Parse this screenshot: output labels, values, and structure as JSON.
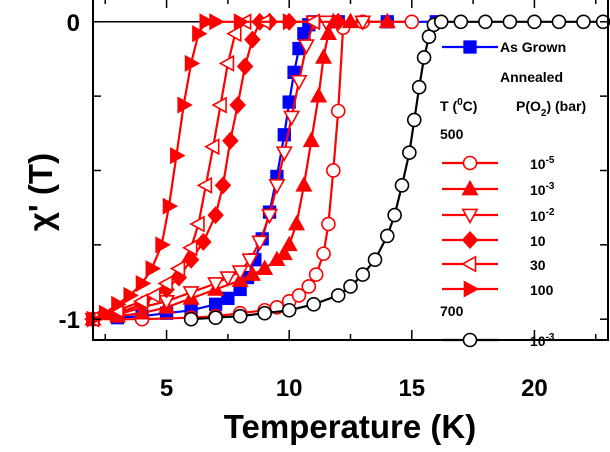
{
  "chart_data": {
    "type": "line",
    "title": "",
    "xlabel": "Temperature (K)",
    "ylabel": "χ' (T)",
    "xlim": [
      2,
      23
    ],
    "ylim": [
      -1.07,
      0.08
    ],
    "x_ticks": [
      5,
      10,
      15,
      20
    ],
    "y_ticks": [
      0,
      -1
    ],
    "grid": false,
    "legend_position": "right",
    "colors": {
      "red": "#ff0000",
      "blue": "#0000ff",
      "black": "#000000"
    },
    "legend_texts": {
      "annealed": "Annealed",
      "t_header": "T (",
      "t_header_sup": "0",
      "t_header_end": "C)",
      "p_header": "P(O",
      "p_header_sub": "2",
      "p_header_end": ") (bar)",
      "group_500": "500",
      "group_700": "700"
    },
    "series": [
      {
        "name": "As Grown",
        "color": "#0000ff",
        "marker": "square-filled",
        "x": [
          2.0,
          3.0,
          4.0,
          5.0,
          6.0,
          7.0,
          7.5,
          8.0,
          8.3,
          8.6,
          8.9,
          9.2,
          9.5,
          9.8,
          10.0,
          10.2,
          10.4,
          10.6,
          10.8,
          11.0,
          12.0,
          14.0,
          16.0
        ],
        "y": [
          -1.0,
          -0.995,
          -0.99,
          -0.98,
          -0.97,
          -0.95,
          -0.93,
          -0.9,
          -0.86,
          -0.8,
          -0.73,
          -0.64,
          -0.52,
          -0.38,
          -0.27,
          -0.17,
          -0.09,
          -0.04,
          -0.01,
          0.0,
          0.0,
          0.0,
          0.0
        ]
      },
      {
        "name": "500 °C, 10⁻⁵ bar",
        "color": "#ff0000",
        "marker": "circle-open",
        "x": [
          2.0,
          4.0,
          6.0,
          7.0,
          8.0,
          9.0,
          9.5,
          10.0,
          10.4,
          10.8,
          11.1,
          11.4,
          11.6,
          11.8,
          12.0,
          12.2,
          13.0,
          15.0
        ],
        "y": [
          -1.0,
          -1.0,
          -0.995,
          -0.99,
          -0.98,
          -0.97,
          -0.96,
          -0.94,
          -0.92,
          -0.89,
          -0.85,
          -0.78,
          -0.68,
          -0.5,
          -0.3,
          -0.02,
          0.0,
          0.0
        ]
      },
      {
        "name": "500 °C, 10⁻³ bar",
        "color": "#ff0000",
        "marker": "triangle-up-filled",
        "x": [
          2.0,
          3.0,
          4.0,
          5.0,
          6.0,
          7.0,
          8.0,
          8.5,
          9.0,
          9.5,
          9.8,
          10.0,
          10.3,
          10.6,
          10.9,
          11.2,
          11.4,
          11.6,
          11.8,
          12.5,
          14.0
        ],
        "y": [
          -1.0,
          -0.99,
          -0.98,
          -0.96,
          -0.93,
          -0.9,
          -0.87,
          -0.85,
          -0.83,
          -0.8,
          -0.78,
          -0.75,
          -0.68,
          -0.55,
          -0.4,
          -0.25,
          -0.12,
          -0.04,
          0.0,
          0.0,
          0.0
        ]
      },
      {
        "name": "500 °C, 10⁻² bar",
        "color": "#ff0000",
        "marker": "triangle-down-open",
        "x": [
          2.0,
          3.0,
          4.0,
          5.0,
          6.0,
          7.0,
          7.5,
          8.0,
          8.4,
          8.8,
          9.2,
          9.5,
          9.8,
          10.1,
          10.4,
          10.7,
          11.0,
          11.5,
          13.0
        ],
        "y": [
          -1.0,
          -0.985,
          -0.96,
          -0.94,
          -0.91,
          -0.88,
          -0.86,
          -0.84,
          -0.8,
          -0.74,
          -0.65,
          -0.55,
          -0.44,
          -0.32,
          -0.2,
          -0.08,
          0.0,
          0.0,
          0.0
        ]
      },
      {
        "name": "500 °C, 10 bar",
        "color": "#ff0000",
        "marker": "diamond-filled",
        "x": [
          2.0,
          3.0,
          4.0,
          5.0,
          5.5,
          6.0,
          6.5,
          7.0,
          7.3,
          7.6,
          7.9,
          8.2,
          8.5,
          8.8,
          9.2,
          10.0,
          12.0
        ],
        "y": [
          -1.0,
          -0.98,
          -0.95,
          -0.9,
          -0.86,
          -0.8,
          -0.74,
          -0.65,
          -0.55,
          -0.4,
          -0.28,
          -0.15,
          -0.06,
          0.0,
          0.0,
          0.0,
          0.0
        ]
      },
      {
        "name": "500 °C, 30 bar",
        "color": "#ff0000",
        "marker": "triangle-left-open",
        "x": [
          2.0,
          3.0,
          4.0,
          4.5,
          5.0,
          5.5,
          6.0,
          6.3,
          6.6,
          6.9,
          7.2,
          7.5,
          7.8,
          8.2,
          9.0,
          11.0
        ],
        "y": [
          -1.0,
          -0.97,
          -0.94,
          -0.92,
          -0.88,
          -0.83,
          -0.76,
          -0.68,
          -0.55,
          -0.42,
          -0.28,
          -0.14,
          -0.04,
          0.0,
          0.0,
          0.0
        ]
      },
      {
        "name": "500 °C, 100 bar",
        "color": "#ff0000",
        "marker": "triangle-right-filled",
        "x": [
          2.0,
          2.5,
          3.0,
          3.5,
          4.0,
          4.4,
          4.8,
          5.1,
          5.4,
          5.7,
          6.0,
          6.3,
          6.6,
          7.0,
          8.0,
          10.0
        ],
        "y": [
          -1.0,
          -0.98,
          -0.95,
          -0.92,
          -0.88,
          -0.83,
          -0.75,
          -0.62,
          -0.45,
          -0.28,
          -0.14,
          -0.04,
          0.0,
          0.0,
          0.0,
          0.0
        ]
      },
      {
        "name": "700 °C, 10⁻³ bar",
        "color": "#000000",
        "marker": "circle-open",
        "x": [
          6.0,
          7.0,
          8.0,
          9.0,
          10.0,
          11.0,
          12.0,
          12.5,
          13.0,
          13.5,
          14.0,
          14.3,
          14.6,
          14.9,
          15.1,
          15.3,
          15.5,
          15.7,
          15.9,
          16.2,
          17.0,
          18.0,
          19.0,
          20.0,
          21.0,
          22.0,
          22.8
        ],
        "y": [
          -1.0,
          -0.995,
          -0.99,
          -0.98,
          -0.97,
          -0.95,
          -0.92,
          -0.89,
          -0.85,
          -0.8,
          -0.72,
          -0.65,
          -0.55,
          -0.44,
          -0.33,
          -0.22,
          -0.12,
          -0.05,
          -0.01,
          0.0,
          0.0,
          0.0,
          0.0,
          0.0,
          0.0,
          0.0,
          0.0
        ]
      }
    ],
    "legend": [
      {
        "series": 0,
        "label": "As Grown",
        "base": "",
        "exp": ""
      },
      {
        "series": 1,
        "label": "",
        "base": "10",
        "exp": "-5"
      },
      {
        "series": 2,
        "label": "",
        "base": "10",
        "exp": "-3"
      },
      {
        "series": 3,
        "label": "",
        "base": "10",
        "exp": "-2"
      },
      {
        "series": 4,
        "label": "",
        "base": "10",
        "exp": ""
      },
      {
        "series": 5,
        "label": "",
        "base": "30",
        "exp": ""
      },
      {
        "series": 6,
        "label": "",
        "base": "100",
        "exp": ""
      },
      {
        "series": 7,
        "label": "",
        "base": "10",
        "exp": "-3"
      }
    ]
  }
}
